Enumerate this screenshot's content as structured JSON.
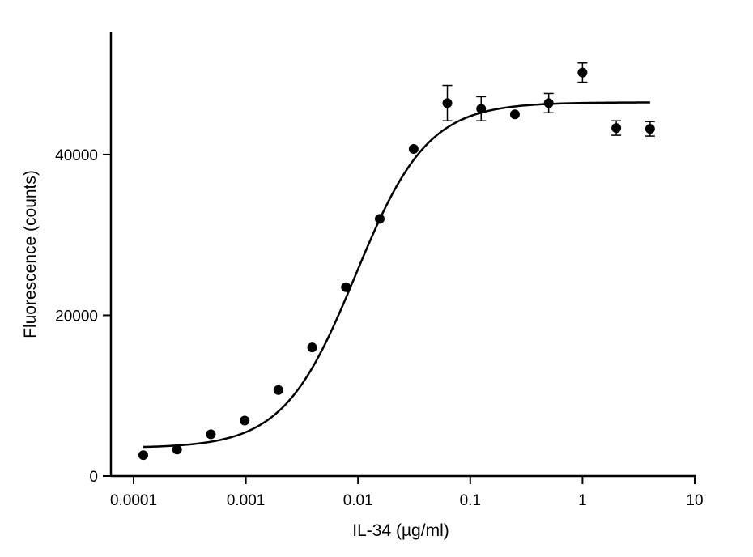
{
  "chart_data": {
    "type": "scatter",
    "title": "",
    "xlabel": "IL-34 (µg/ml)",
    "ylabel": "Fluorescence (counts)",
    "x_scale": "log",
    "xlim": [
      0.0001,
      10
    ],
    "ylim": [
      0,
      55000
    ],
    "x_ticks": [
      0.0001,
      0.001,
      0.01,
      0.1,
      1,
      10
    ],
    "x_tick_labels": [
      "0.0001",
      "0.001",
      "0.01",
      "0.1",
      "1",
      "10"
    ],
    "y_ticks": [
      0,
      20000,
      40000
    ],
    "y_tick_labels": [
      "0",
      "20000",
      "40000"
    ],
    "grid": false,
    "points": [
      {
        "x": 0.000122,
        "y": 2600,
        "err": 0
      },
      {
        "x": 0.000244,
        "y": 3300,
        "err": 0
      },
      {
        "x": 0.000488,
        "y": 5200,
        "err": 0
      },
      {
        "x": 0.000977,
        "y": 6900,
        "err": 0
      },
      {
        "x": 0.00195,
        "y": 10700,
        "err": 0
      },
      {
        "x": 0.0039,
        "y": 16000,
        "err": 0
      },
      {
        "x": 0.0078,
        "y": 23500,
        "err": 0
      },
      {
        "x": 0.0156,
        "y": 32000,
        "err": 0
      },
      {
        "x": 0.0313,
        "y": 40700,
        "err": 0
      },
      {
        "x": 0.0625,
        "y": 46400,
        "err": 2200
      },
      {
        "x": 0.125,
        "y": 45700,
        "err": 1500
      },
      {
        "x": 0.25,
        "y": 45000,
        "err": 0
      },
      {
        "x": 0.5,
        "y": 46400,
        "err": 1200
      },
      {
        "x": 1.0,
        "y": 50200,
        "err": 1200
      },
      {
        "x": 2.0,
        "y": 43300,
        "err": 900
      },
      {
        "x": 4.0,
        "y": 43200,
        "err": 900
      }
    ],
    "fit": {
      "model": "4PL",
      "bottom": 3500,
      "top": 46500,
      "ec50": 0.0095,
      "hill": 1.35,
      "x_range": [
        0.000122,
        4.0
      ]
    }
  }
}
